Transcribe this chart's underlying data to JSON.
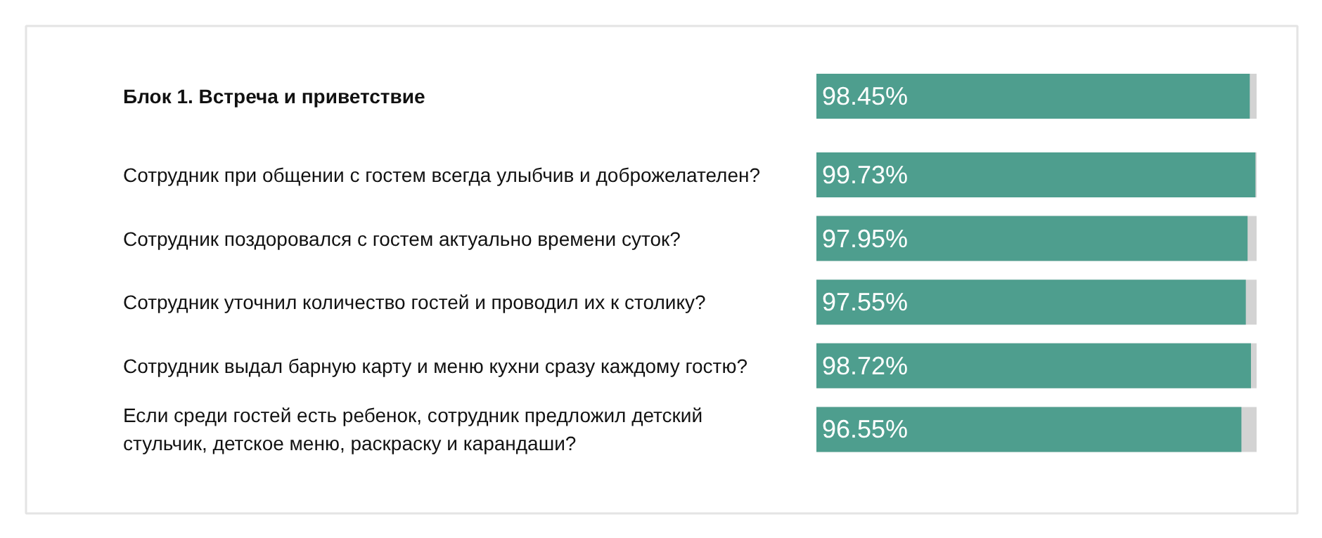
{
  "chart_data": {
    "type": "bar",
    "orientation": "horizontal",
    "categories": [
      "Блок 1. Встреча и приветствие",
      "Сотрудник при общении с гостем всегда улыбчив и доброжелателен?",
      "Сотрудник поздоровался с гостем актуально времени суток?",
      "Сотрудник уточнил количество гостей и проводил их к столику?",
      "Сотрудник выдал барную карту и меню кухни сразу каждому гостю?",
      "Если среди гостей есть ребенок, сотрудник предложил детский стульчик, детское меню, раскраску и карандаши?"
    ],
    "values": [
      98.45,
      99.73,
      97.95,
      97.55,
      98.72,
      96.55
    ],
    "value_labels": [
      "98.45%",
      "99.73%",
      "97.95%",
      "97.55%",
      "98.72%",
      "96.55%"
    ],
    "color": "#4e9e8e",
    "xlim": [
      0,
      100
    ],
    "tick_labels": false,
    "grid": false
  }
}
